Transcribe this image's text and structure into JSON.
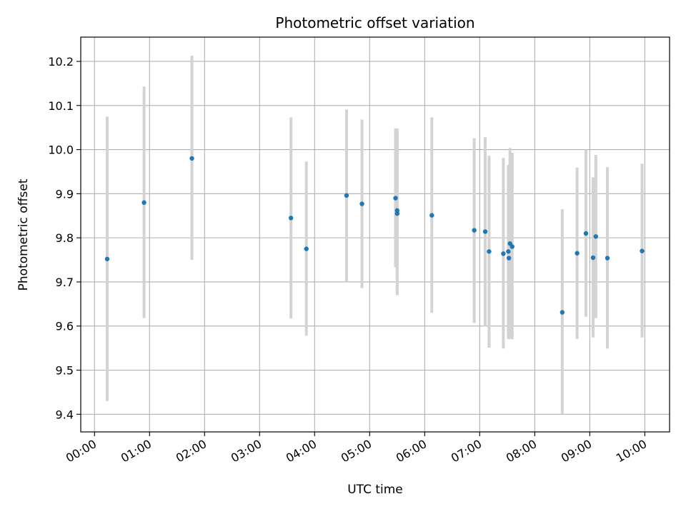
{
  "chart_data": {
    "type": "scatter",
    "title": "Photometric offset variation",
    "xlabel": "UTC time",
    "ylabel": "Photometric offset",
    "x_unit": "hours UTC",
    "xlim": [
      -0.25,
      10.45
    ],
    "ylim": [
      9.36,
      10.255
    ],
    "grid": true,
    "x_ticks": [
      0,
      1,
      2,
      3,
      4,
      5,
      6,
      7,
      8,
      9,
      10
    ],
    "x_tick_labels": [
      "00:00",
      "01:00",
      "02:00",
      "03:00",
      "04:00",
      "05:00",
      "06:00",
      "07:00",
      "08:00",
      "09:00",
      "10:00"
    ],
    "y_ticks": [
      9.4,
      9.5,
      9.6,
      9.7,
      9.8,
      9.9,
      10.0,
      10.1,
      10.2
    ],
    "y_tick_labels": [
      "9.4",
      "9.5",
      "9.6",
      "9.7",
      "9.8",
      "9.9",
      "10.0",
      "10.1",
      "10.2"
    ],
    "marker_color": "#1f77b4",
    "errorbar_color": "#d3d3d3",
    "points": [
      {
        "x": 0.23,
        "y": 9.752,
        "lo": 9.43,
        "hi": 10.075
      },
      {
        "x": 0.9,
        "y": 9.88,
        "lo": 9.618,
        "hi": 10.143
      },
      {
        "x": 1.77,
        "y": 9.98,
        "lo": 9.75,
        "hi": 10.213
      },
      {
        "x": 3.57,
        "y": 9.845,
        "lo": 9.617,
        "hi": 10.073
      },
      {
        "x": 3.85,
        "y": 9.775,
        "lo": 9.578,
        "hi": 9.973
      },
      {
        "x": 4.58,
        "y": 9.896,
        "lo": 9.7,
        "hi": 10.091
      },
      {
        "x": 4.86,
        "y": 9.877,
        "lo": 9.686,
        "hi": 10.068
      },
      {
        "x": 5.47,
        "y": 9.89,
        "lo": 9.733,
        "hi": 10.048
      },
      {
        "x": 5.5,
        "y": 9.862,
        "lo": 9.67,
        "hi": 10.048
      },
      {
        "x": 5.5,
        "y": 9.855,
        "lo": 9.67,
        "hi": 10.04
      },
      {
        "x": 6.13,
        "y": 9.851,
        "lo": 9.63,
        "hi": 10.073
      },
      {
        "x": 6.9,
        "y": 9.817,
        "lo": 9.607,
        "hi": 10.026
      },
      {
        "x": 7.1,
        "y": 9.814,
        "lo": 9.6,
        "hi": 10.028
      },
      {
        "x": 7.17,
        "y": 9.769,
        "lo": 9.551,
        "hi": 9.986
      },
      {
        "x": 7.43,
        "y": 9.764,
        "lo": 9.549,
        "hi": 9.981
      },
      {
        "x": 7.52,
        "y": 9.769,
        "lo": 9.572,
        "hi": 9.965
      },
      {
        "x": 7.53,
        "y": 9.754,
        "lo": 9.57,
        "hi": 9.95
      },
      {
        "x": 7.55,
        "y": 9.787,
        "lo": 9.573,
        "hi": 10.004
      },
      {
        "x": 7.59,
        "y": 9.78,
        "lo": 9.57,
        "hi": 9.993
      },
      {
        "x": 8.5,
        "y": 9.631,
        "lo": 9.4,
        "hi": 9.865
      },
      {
        "x": 8.77,
        "y": 9.765,
        "lo": 9.571,
        "hi": 9.959
      },
      {
        "x": 8.93,
        "y": 9.81,
        "lo": 9.621,
        "hi": 10.0
      },
      {
        "x": 9.06,
        "y": 9.755,
        "lo": 9.574,
        "hi": 9.937
      },
      {
        "x": 9.11,
        "y": 9.803,
        "lo": 9.618,
        "hi": 9.988
      },
      {
        "x": 9.32,
        "y": 9.754,
        "lo": 9.549,
        "hi": 9.96
      },
      {
        "x": 9.95,
        "y": 9.77,
        "lo": 9.574,
        "hi": 9.968
      }
    ]
  }
}
